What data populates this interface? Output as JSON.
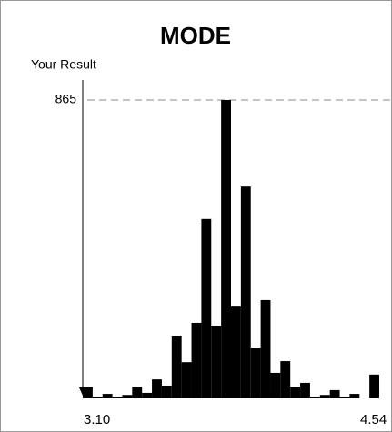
{
  "chart_data": {
    "type": "histogram",
    "title": "MODE",
    "y_label": "Your Result",
    "bins": [
      3.1,
      3.148,
      3.196,
      3.244,
      3.292,
      3.34,
      3.388,
      3.436,
      3.484,
      3.532,
      3.58,
      3.628,
      3.676,
      3.724,
      3.772,
      3.82,
      3.868,
      3.916,
      3.964,
      4.012,
      4.06,
      4.108,
      4.156,
      4.204,
      4.252,
      4.3,
      4.348,
      4.396,
      4.444,
      4.492,
      4.54
    ],
    "values": [
      34,
      5,
      13,
      5,
      10,
      34,
      16,
      55,
      37,
      182,
      105,
      219,
      520,
      211,
      865,
      266,
      614,
      145,
      285,
      74,
      108,
      34,
      45,
      5,
      10,
      24,
      5,
      13,
      0,
      69
    ],
    "color": "#000000",
    "xlim": [
      3.1,
      4.54
    ],
    "xticks": [
      {
        "value": 3.1,
        "label": "3.10"
      },
      {
        "value": 4.54,
        "label": "4.54"
      }
    ],
    "ylim": [
      0,
      865
    ],
    "yticks": [
      865
    ],
    "grid": true
  }
}
